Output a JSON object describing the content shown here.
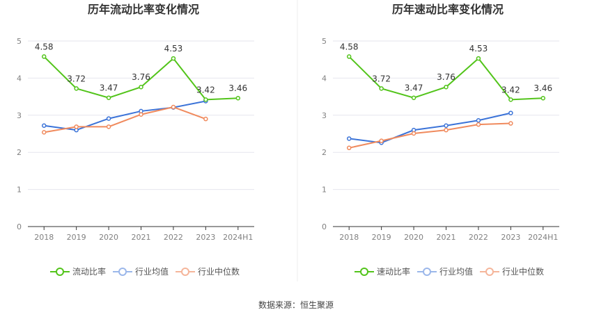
{
  "source_text": "数据来源：恒生聚源",
  "colors": {
    "main": "#52c41a",
    "industry_avg": "#3b73d8",
    "industry_median": "#f08a5d",
    "legend_avg": "#9bb7ea",
    "legend_median": "#f5b59a",
    "grid": "#e6e6ee",
    "axis": "#333333"
  },
  "chart_data": [
    {
      "type": "line",
      "title": "历年流动比率变化情况",
      "categories": [
        "2018",
        "2019",
        "2020",
        "2021",
        "2022",
        "2023",
        "2024H1"
      ],
      "ylim": [
        0,
        5
      ],
      "yticks": [
        "0",
        "1",
        "2",
        "3",
        "4",
        "5"
      ],
      "grid": true,
      "legend": "bottom",
      "series": [
        {
          "name": "流动比率",
          "color": "#52c41a",
          "legend_icon_color": "#52c41a",
          "values": [
            4.58,
            3.72,
            3.47,
            3.76,
            4.53,
            3.42,
            3.46
          ],
          "labels": [
            "4.58",
            "3.72",
            "3.47",
            "3.76",
            "4.53",
            "3.42",
            "3.46"
          ]
        },
        {
          "name": "行业均值",
          "color": "#3b73d8",
          "legend_icon_color": "#9bb7ea",
          "values": [
            2.72,
            2.6,
            2.91,
            3.11,
            3.21,
            3.38,
            null
          ]
        },
        {
          "name": "行业中位数",
          "color": "#f08a5d",
          "legend_icon_color": "#f5b59a",
          "values": [
            2.54,
            2.69,
            2.69,
            3.02,
            3.22,
            2.9,
            null
          ]
        }
      ]
    },
    {
      "type": "line",
      "title": "历年速动比率变化情况",
      "categories": [
        "2018",
        "2019",
        "2020",
        "2021",
        "2022",
        "2023",
        "2024H1"
      ],
      "ylim": [
        0,
        5
      ],
      "yticks": [
        "0",
        "1",
        "2",
        "3",
        "4",
        "5"
      ],
      "grid": true,
      "legend": "bottom",
      "series": [
        {
          "name": "速动比率",
          "color": "#52c41a",
          "legend_icon_color": "#52c41a",
          "values": [
            4.58,
            3.72,
            3.47,
            3.76,
            4.53,
            3.42,
            3.46
          ],
          "labels": [
            "4.58",
            "3.72",
            "3.47",
            "3.76",
            "4.53",
            "3.42",
            "3.46"
          ]
        },
        {
          "name": "行业均值",
          "color": "#3b73d8",
          "legend_icon_color": "#9bb7ea",
          "values": [
            2.37,
            2.26,
            2.6,
            2.72,
            2.86,
            3.06,
            null
          ]
        },
        {
          "name": "行业中位数",
          "color": "#f08a5d",
          "legend_icon_color": "#f5b59a",
          "values": [
            2.12,
            2.31,
            2.51,
            2.6,
            2.75,
            2.78,
            null
          ]
        }
      ]
    }
  ]
}
